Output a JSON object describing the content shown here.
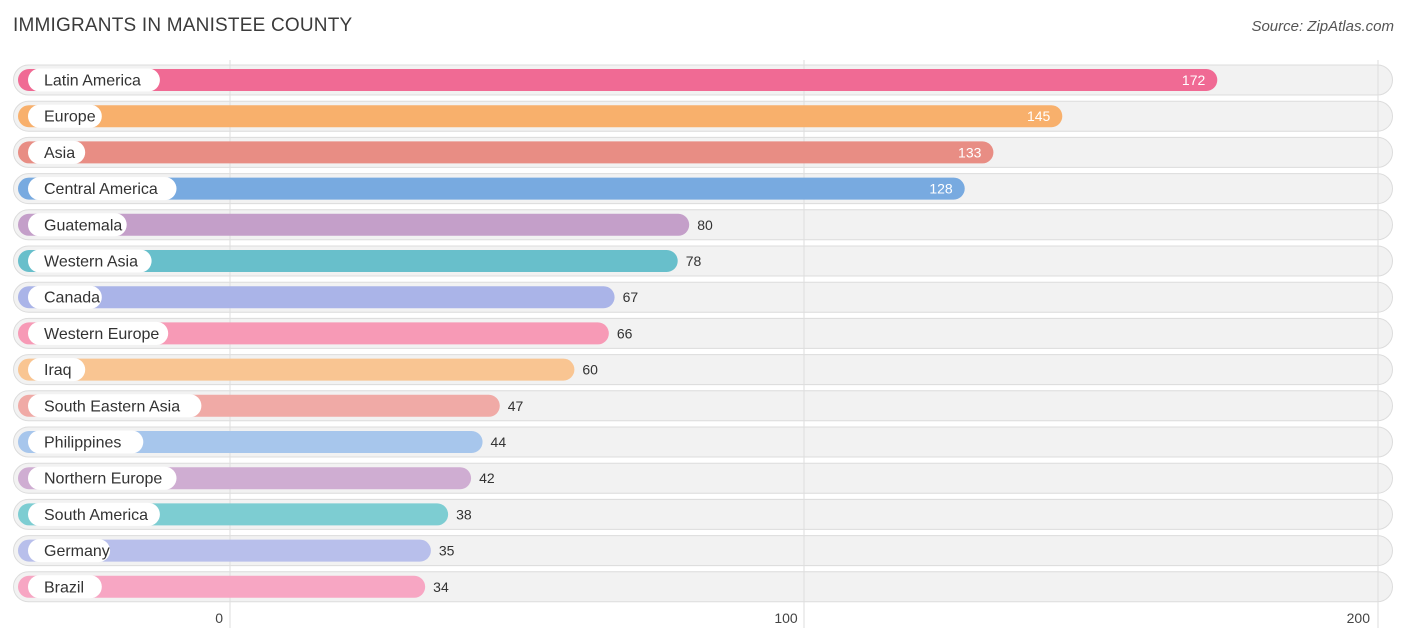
{
  "header": {
    "title": "IMMIGRANTS IN MANISTEE COUNTY",
    "source": "Source: ZipAtlas.com"
  },
  "chart_data": {
    "type": "bar",
    "orientation": "horizontal",
    "title": "IMMIGRANTS IN MANISTEE COUNTY",
    "xlabel": "",
    "ylabel": "",
    "xlim": [
      0,
      200
    ],
    "ticks": [
      0,
      100,
      200
    ],
    "grid": true,
    "categories": [
      "Latin America",
      "Europe",
      "Asia",
      "Central America",
      "Guatemala",
      "Western Asia",
      "Canada",
      "Western Europe",
      "Iraq",
      "South Eastern Asia",
      "Philippines",
      "Northern Europe",
      "South America",
      "Germany",
      "Brazil"
    ],
    "values": [
      172,
      145,
      133,
      128,
      80,
      78,
      67,
      66,
      60,
      47,
      44,
      42,
      38,
      35,
      34
    ],
    "colors": [
      "#f06a94",
      "#f8b06c",
      "#e88d84",
      "#78aae0",
      "#c49fc9",
      "#68bfcb",
      "#aab4e8",
      "#f79ab6",
      "#f9c592",
      "#f0aaa6",
      "#a7c6ec",
      "#cfadd2",
      "#7dcdd2",
      "#b8bfeb",
      "#f7a6c3"
    ]
  }
}
